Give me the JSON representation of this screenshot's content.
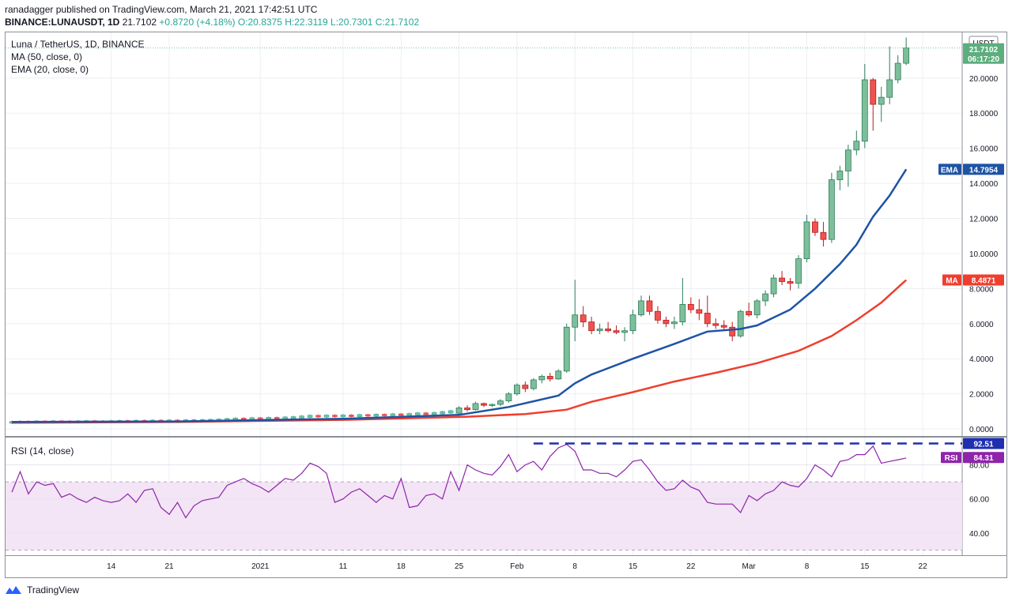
{
  "header": {
    "line1": "ranadagger published on TradingView.com, March 21, 2021 17:42:51 UTC",
    "symbol": "BINANCE:LUNAUSDT, 1D",
    "price": "21.7102",
    "change": "+0.8720 (+4.18%)",
    "ohlc": "O:20.8375 H:22.3119 L:20.7301 C:21.7102"
  },
  "legend": {
    "title": "Luna / TetherUS, 1D, BINANCE",
    "ma": "MA (50, close, 0)",
    "ema": "EMA (20, close, 0)",
    "rsi": "RSI (14, close)"
  },
  "currency_label": "USDT",
  "badges": {
    "price": "21.7102",
    "countdown": "06:17:20",
    "ema_label": "EMA",
    "ema_value": "14.7954",
    "ma_label": "MA",
    "ma_value": "8.4871",
    "rsi_label": "RSI",
    "rsi_value": "84.31",
    "rsi_peak": "92.51"
  },
  "footer": {
    "brand": "TradingView"
  },
  "colors": {
    "up": "#26a69a",
    "up_fill": "#7dbf9a",
    "down": "#ef5350",
    "ema": "#1e53a5",
    "ma": "#ef3e2e",
    "rsi": "#8e24aa",
    "rsi_band": "#f3e5f5",
    "dashed": "#1e2fb0"
  },
  "chart_data": {
    "type": "candlestick",
    "title": "Luna / TetherUS, 1D, BINANCE",
    "y_ticks": [
      "0.0000",
      "2.0000",
      "4.0000",
      "6.0000",
      "8.0000",
      "10.0000",
      "12.0000",
      "14.0000",
      "16.0000",
      "18.0000",
      "20.0000"
    ],
    "ylim": [
      -0.4,
      22.6
    ],
    "rsi_ticks": [
      "40.00",
      "60.00",
      "80.00"
    ],
    "rsi_lim": [
      27,
      96
    ],
    "rsi_band": [
      30,
      70
    ],
    "x_ticks": [
      {
        "day": 12,
        "label": "14"
      },
      {
        "day": 19,
        "label": "21"
      },
      {
        "day": 30,
        "label": "2021"
      },
      {
        "day": 40,
        "label": "11"
      },
      {
        "day": 47,
        "label": "18"
      },
      {
        "day": 54,
        "label": "25"
      },
      {
        "day": 61,
        "label": "Feb"
      },
      {
        "day": 68,
        "label": "8"
      },
      {
        "day": 75,
        "label": "15"
      },
      {
        "day": 82,
        "label": "22"
      },
      {
        "day": 89,
        "label": "Mar"
      },
      {
        "day": 96,
        "label": "8"
      },
      {
        "day": 103,
        "label": "15"
      },
      {
        "day": 110,
        "label": "22"
      }
    ],
    "x_range": [
      0,
      114
    ],
    "candles_early": {
      "start_day": 0,
      "closes": [
        0.38,
        0.4,
        0.39,
        0.41,
        0.4,
        0.42,
        0.41,
        0.4,
        0.42,
        0.43,
        0.41,
        0.42,
        0.43,
        0.44,
        0.43,
        0.45,
        0.44,
        0.46,
        0.45,
        0.47,
        0.46,
        0.48,
        0.47,
        0.49,
        0.5,
        0.52,
        0.55,
        0.58,
        0.56,
        0.6,
        0.58,
        0.62,
        0.6,
        0.64,
        0.66,
        0.7,
        0.74,
        0.72,
        0.75,
        0.73,
        0.76,
        0.74,
        0.78,
        0.77,
        0.8,
        0.79,
        0.82,
        0.8,
        0.84,
        0.88,
        0.86,
        0.9,
        0.95,
        1.0
      ]
    },
    "candles": [
      {
        "day": 54,
        "o": 0.9,
        "h": 1.3,
        "l": 0.85,
        "c": 1.2
      },
      {
        "day": 55,
        "o": 1.2,
        "h": 1.35,
        "l": 1.0,
        "c": 1.1
      },
      {
        "day": 56,
        "o": 1.1,
        "h": 1.55,
        "l": 1.05,
        "c": 1.45
      },
      {
        "day": 57,
        "o": 1.45,
        "h": 1.5,
        "l": 1.25,
        "c": 1.35
      },
      {
        "day": 58,
        "o": 1.35,
        "h": 1.45,
        "l": 1.25,
        "c": 1.4
      },
      {
        "day": 59,
        "o": 1.4,
        "h": 1.7,
        "l": 1.3,
        "c": 1.6
      },
      {
        "day": 60,
        "o": 1.6,
        "h": 2.1,
        "l": 1.5,
        "c": 2.0
      },
      {
        "day": 61,
        "o": 2.0,
        "h": 2.6,
        "l": 1.9,
        "c": 2.5
      },
      {
        "day": 62,
        "o": 2.5,
        "h": 2.7,
        "l": 2.1,
        "c": 2.3
      },
      {
        "day": 63,
        "o": 2.3,
        "h": 2.9,
        "l": 2.2,
        "c": 2.8
      },
      {
        "day": 64,
        "o": 2.8,
        "h": 3.1,
        "l": 2.6,
        "c": 3.0
      },
      {
        "day": 65,
        "o": 3.0,
        "h": 3.2,
        "l": 2.7,
        "c": 2.85
      },
      {
        "day": 66,
        "o": 2.85,
        "h": 3.4,
        "l": 2.8,
        "c": 3.3
      },
      {
        "day": 67,
        "o": 3.3,
        "h": 6.0,
        "l": 3.2,
        "c": 5.8
      },
      {
        "day": 68,
        "o": 5.8,
        "h": 8.5,
        "l": 5.0,
        "c": 6.5
      },
      {
        "day": 69,
        "o": 6.5,
        "h": 7.0,
        "l": 5.8,
        "c": 6.1
      },
      {
        "day": 70,
        "o": 6.1,
        "h": 6.4,
        "l": 5.4,
        "c": 5.6
      },
      {
        "day": 71,
        "o": 5.6,
        "h": 6.0,
        "l": 5.4,
        "c": 5.7
      },
      {
        "day": 72,
        "o": 5.7,
        "h": 6.1,
        "l": 5.5,
        "c": 5.6
      },
      {
        "day": 73,
        "o": 5.6,
        "h": 5.9,
        "l": 5.4,
        "c": 5.5
      },
      {
        "day": 74,
        "o": 5.5,
        "h": 5.8,
        "l": 5.0,
        "c": 5.6
      },
      {
        "day": 75,
        "o": 5.6,
        "h": 6.8,
        "l": 5.4,
        "c": 6.5
      },
      {
        "day": 76,
        "o": 6.5,
        "h": 7.6,
        "l": 6.4,
        "c": 7.3
      },
      {
        "day": 77,
        "o": 7.3,
        "h": 7.6,
        "l": 6.5,
        "c": 6.7
      },
      {
        "day": 78,
        "o": 6.7,
        "h": 7.0,
        "l": 6.0,
        "c": 6.2
      },
      {
        "day": 79,
        "o": 6.2,
        "h": 6.4,
        "l": 5.8,
        "c": 6.0
      },
      {
        "day": 80,
        "o": 6.0,
        "h": 6.4,
        "l": 5.7,
        "c": 6.1
      },
      {
        "day": 81,
        "o": 6.1,
        "h": 8.6,
        "l": 5.9,
        "c": 7.1
      },
      {
        "day": 82,
        "o": 7.1,
        "h": 7.5,
        "l": 6.6,
        "c": 6.8
      },
      {
        "day": 83,
        "o": 6.8,
        "h": 7.4,
        "l": 6.2,
        "c": 6.6
      },
      {
        "day": 84,
        "o": 6.6,
        "h": 7.6,
        "l": 5.8,
        "c": 6.0
      },
      {
        "day": 85,
        "o": 6.0,
        "h": 6.3,
        "l": 5.7,
        "c": 5.9
      },
      {
        "day": 86,
        "o": 5.9,
        "h": 6.2,
        "l": 5.6,
        "c": 5.8
      },
      {
        "day": 87,
        "o": 5.8,
        "h": 6.1,
        "l": 5.0,
        "c": 5.3
      },
      {
        "day": 88,
        "o": 5.3,
        "h": 6.8,
        "l": 5.2,
        "c": 6.7
      },
      {
        "day": 89,
        "o": 6.7,
        "h": 7.2,
        "l": 6.4,
        "c": 6.5
      },
      {
        "day": 90,
        "o": 6.5,
        "h": 7.4,
        "l": 6.3,
        "c": 7.3
      },
      {
        "day": 91,
        "o": 7.3,
        "h": 7.9,
        "l": 7.0,
        "c": 7.7
      },
      {
        "day": 92,
        "o": 7.7,
        "h": 8.8,
        "l": 7.5,
        "c": 8.6
      },
      {
        "day": 93,
        "o": 8.6,
        "h": 9.0,
        "l": 8.2,
        "c": 8.4
      },
      {
        "day": 94,
        "o": 8.4,
        "h": 8.6,
        "l": 7.9,
        "c": 8.3
      },
      {
        "day": 95,
        "o": 8.3,
        "h": 9.9,
        "l": 8.0,
        "c": 9.7
      },
      {
        "day": 96,
        "o": 9.7,
        "h": 12.2,
        "l": 9.5,
        "c": 11.8
      },
      {
        "day": 97,
        "o": 11.8,
        "h": 12.0,
        "l": 11.0,
        "c": 11.2
      },
      {
        "day": 98,
        "o": 11.2,
        "h": 11.8,
        "l": 10.4,
        "c": 10.8
      },
      {
        "day": 99,
        "o": 10.8,
        "h": 14.6,
        "l": 10.6,
        "c": 14.2
      },
      {
        "day": 100,
        "o": 14.2,
        "h": 15.0,
        "l": 13.6,
        "c": 14.7
      },
      {
        "day": 101,
        "o": 14.7,
        "h": 16.2,
        "l": 13.8,
        "c": 15.9
      },
      {
        "day": 102,
        "o": 15.9,
        "h": 17.0,
        "l": 15.6,
        "c": 16.4
      },
      {
        "day": 103,
        "o": 16.4,
        "h": 20.8,
        "l": 16.0,
        "c": 19.9
      },
      {
        "day": 104,
        "o": 19.9,
        "h": 20.0,
        "l": 17.0,
        "c": 18.5
      },
      {
        "day": 105,
        "o": 18.5,
        "h": 19.5,
        "l": 17.5,
        "c": 18.9
      },
      {
        "day": 106,
        "o": 18.9,
        "h": 21.8,
        "l": 18.5,
        "c": 19.9
      },
      {
        "day": 107,
        "o": 19.9,
        "h": 21.3,
        "l": 19.7,
        "c": 20.84
      },
      {
        "day": 108,
        "o": 20.84,
        "h": 22.31,
        "l": 20.73,
        "c": 21.71
      }
    ],
    "ema": [
      {
        "day": 0,
        "v": 0.4
      },
      {
        "day": 20,
        "v": 0.43
      },
      {
        "day": 40,
        "v": 0.58
      },
      {
        "day": 54,
        "v": 0.8
      },
      {
        "day": 60,
        "v": 1.25
      },
      {
        "day": 66,
        "v": 1.9
      },
      {
        "day": 68,
        "v": 2.6
      },
      {
        "day": 70,
        "v": 3.1
      },
      {
        "day": 75,
        "v": 4.0
      },
      {
        "day": 80,
        "v": 4.85
      },
      {
        "day": 84,
        "v": 5.55
      },
      {
        "day": 88,
        "v": 5.7
      },
      {
        "day": 90,
        "v": 5.9
      },
      {
        "day": 94,
        "v": 6.8
      },
      {
        "day": 97,
        "v": 8.0
      },
      {
        "day": 100,
        "v": 9.4
      },
      {
        "day": 102,
        "v": 10.5
      },
      {
        "day": 104,
        "v": 12.1
      },
      {
        "day": 106,
        "v": 13.3
      },
      {
        "day": 108,
        "v": 14.8
      }
    ],
    "ma": [
      {
        "day": 0,
        "v": 0.35
      },
      {
        "day": 20,
        "v": 0.4
      },
      {
        "day": 40,
        "v": 0.52
      },
      {
        "day": 55,
        "v": 0.7
      },
      {
        "day": 62,
        "v": 0.85
      },
      {
        "day": 67,
        "v": 1.1
      },
      {
        "day": 70,
        "v": 1.55
      },
      {
        "day": 75,
        "v": 2.1
      },
      {
        "day": 80,
        "v": 2.7
      },
      {
        "day": 85,
        "v": 3.2
      },
      {
        "day": 90,
        "v": 3.75
      },
      {
        "day": 95,
        "v": 4.45
      },
      {
        "day": 99,
        "v": 5.3
      },
      {
        "day": 102,
        "v": 6.2
      },
      {
        "day": 105,
        "v": 7.2
      },
      {
        "day": 108,
        "v": 8.49
      }
    ],
    "rsi": [
      64,
      76,
      63,
      70,
      68,
      69,
      61,
      63,
      60,
      58,
      61,
      59,
      58,
      59,
      63,
      58,
      65,
      66,
      55,
      51,
      58,
      49,
      56,
      59,
      60,
      61,
      68,
      70,
      72,
      69,
      67,
      64,
      68,
      72,
      71,
      75,
      81,
      79,
      75,
      58,
      60,
      64,
      66,
      62,
      58,
      62,
      60,
      72,
      55,
      56,
      62,
      63,
      60,
      76,
      65,
      80,
      77,
      75,
      74,
      79,
      86,
      76,
      80,
      82,
      77,
      85,
      90,
      92,
      88,
      77,
      77,
      75,
      75,
      73,
      77,
      82,
      83,
      77,
      70,
      65,
      66,
      71,
      67,
      65,
      58,
      57,
      57,
      57,
      52,
      62,
      59,
      63,
      65,
      70,
      68,
      67,
      72,
      80,
      77,
      73,
      82,
      83,
      86,
      86,
      91,
      81,
      82,
      83,
      84
    ]
  }
}
